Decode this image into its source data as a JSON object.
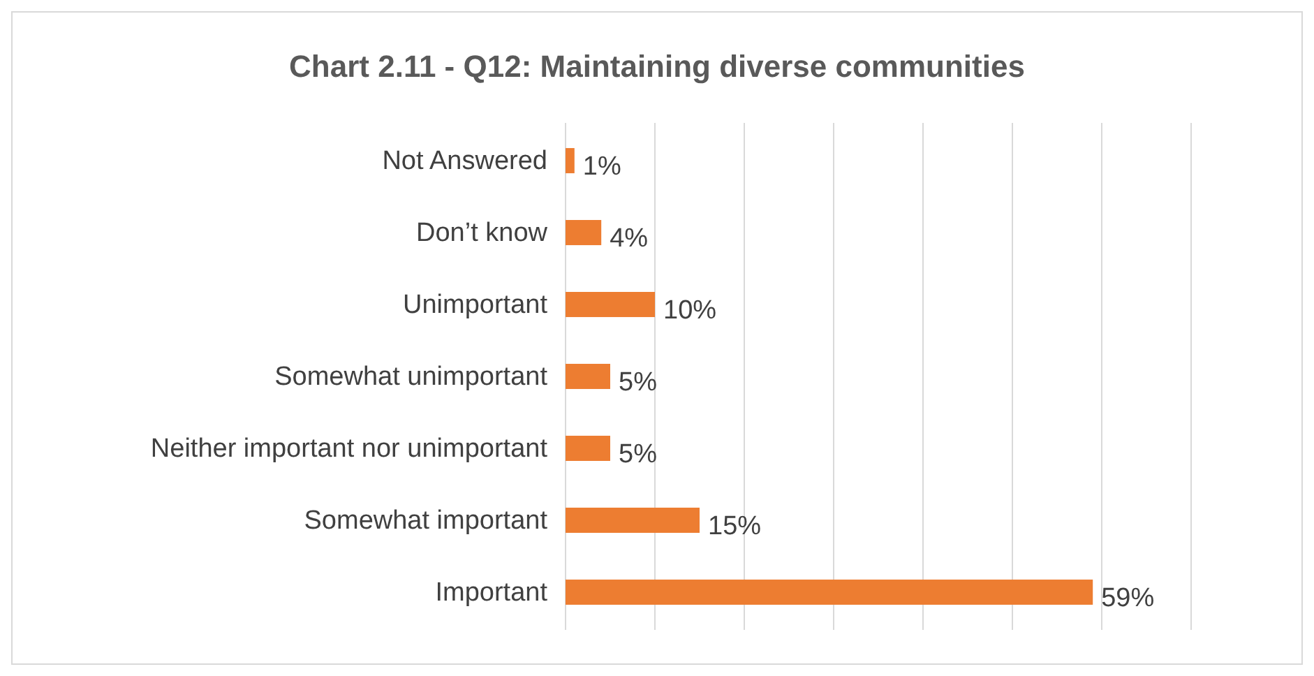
{
  "chart_data": {
    "type": "bar",
    "orientation": "horizontal",
    "title": "Chart 2.11 - Q12: Maintaining diverse communities",
    "categories": [
      "Not Answered",
      "Don’t know",
      "Unimportant",
      "Somewhat unimportant",
      "Neither important nor unimportant",
      "Somewhat important",
      "Important"
    ],
    "values": [
      1,
      4,
      10,
      5,
      5,
      15,
      59
    ],
    "color": "#ed7d31",
    "value_labels": [
      "1%",
      "4%",
      "10%",
      "5%",
      "5%",
      "15%",
      "59%"
    ],
    "xlim": [
      0,
      70
    ],
    "xticks": [
      {
        "value": 0,
        "label": null
      },
      {
        "value": 10,
        "label": null
      },
      {
        "value": 20,
        "label": null
      },
      {
        "value": 30,
        "label": null
      },
      {
        "value": 40,
        "label": null
      },
      {
        "value": 50,
        "label": null
      },
      {
        "value": 60,
        "label": null
      },
      {
        "value": 70,
        "label": null
      }
    ],
    "grid": "x",
    "tick_labels": "y"
  }
}
